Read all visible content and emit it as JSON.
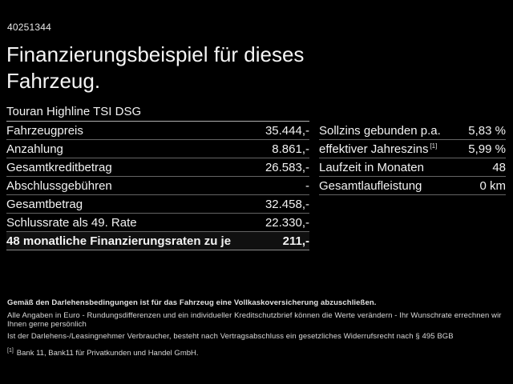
{
  "page": {
    "vehicle_id": "40251344",
    "title_line1": "Finanzierungsbeispiel für dieses",
    "title_line2": "Fahrzeug."
  },
  "left_table": {
    "header": "Touran Highline TSI DSG",
    "rows": [
      {
        "label": "Fahrzeugpreis",
        "value": "35.444,-"
      },
      {
        "label": "Anzahlung",
        "value": "8.861,-"
      },
      {
        "label": "Gesamtkreditbetrag",
        "value": "26.583,-"
      },
      {
        "label": "Abschlussgebühren",
        "value": "-"
      },
      {
        "label": "Gesamtbetrag",
        "value": "32.458,-"
      },
      {
        "label": "Schlussrate als 49. Rate",
        "value": "22.330,-"
      },
      {
        "label": "48 monatliche Finanzierungsraten zu je",
        "value": "211,-"
      }
    ]
  },
  "right_table": {
    "rows": [
      {
        "label": "Sollzins gebunden p.a.",
        "sup": "",
        "value": "5,83 %"
      },
      {
        "label": "effektiver Jahreszins",
        "sup": "[1]",
        "value": "5,99 %"
      },
      {
        "label": "Laufzeit in Monaten",
        "sup": "",
        "value": "48"
      },
      {
        "label": "Gesamtlaufleistung",
        "sup": "",
        "value": "0 km"
      }
    ]
  },
  "footer": {
    "bold_line": "Gemäß den Darlehensbedingungen ist für das Fahrzeug eine Vollkaskoversicherung abzuschließen.",
    "line2": "Alle Angaben in Euro - Rundungsdifferenzen und ein individueller Kreditschutzbrief können die Werte verändern - Ihr Wunschrate errechnen wir Ihnen gerne persönlich",
    "line3": "Ist der Darlehens-/Leasingnehmer Verbraucher, besteht nach Vertragsabschluss ein gesetzliches Widerrufsrecht nach § 495 BGB",
    "footnote_marker": "[1]",
    "footnote_text": "Bank 11, Bank11 für Privatkunden und Handel GmbH."
  },
  "colors": {
    "background": "#000000",
    "text": "#f2f2f2",
    "header_separator": "#b0b0b0",
    "row_separator": "#646464"
  }
}
